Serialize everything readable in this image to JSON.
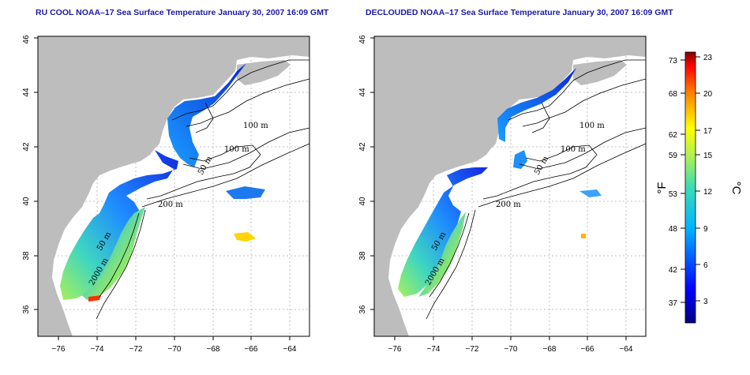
{
  "panels": [
    {
      "title": "RU COOL NOAA–17 Sea Surface Temperature January 30, 2007 16:09 GMT",
      "xticks": [
        "−76",
        "−74",
        "−72",
        "−70",
        "−68",
        "−66",
        "−64"
      ],
      "yticks": [
        "36",
        "38",
        "40",
        "42",
        "44",
        "46"
      ],
      "contour_labels": [
        "100 m",
        "100 m",
        "50 m",
        "200 m",
        "50 m",
        "2000 m"
      ]
    },
    {
      "title": "DECLOUDED NOAA–17 Sea Surface Temperature January 30, 2007 16:09 GMT",
      "xticks": [
        "−76",
        "−74",
        "−72",
        "−70",
        "−68",
        "−66",
        "−64"
      ],
      "yticks": [
        "36",
        "38",
        "40",
        "42",
        "44",
        "46"
      ],
      "contour_labels": [
        "100 m",
        "100 m",
        "50 m",
        "200 m",
        "50 m",
        "2000 m"
      ]
    }
  ],
  "colorbar": {
    "f_label": "°F",
    "c_label": "°C",
    "f_ticks": [
      "73",
      "68",
      "62",
      "59",
      "53",
      "48",
      "42",
      "37"
    ],
    "c_ticks": [
      "23",
      "20",
      "17",
      "15",
      "12",
      "9",
      "6",
      "3"
    ]
  },
  "colors": {
    "title": "#1a1aa6",
    "land": "#bdbdbd",
    "grid": "#b0b0b0"
  }
}
